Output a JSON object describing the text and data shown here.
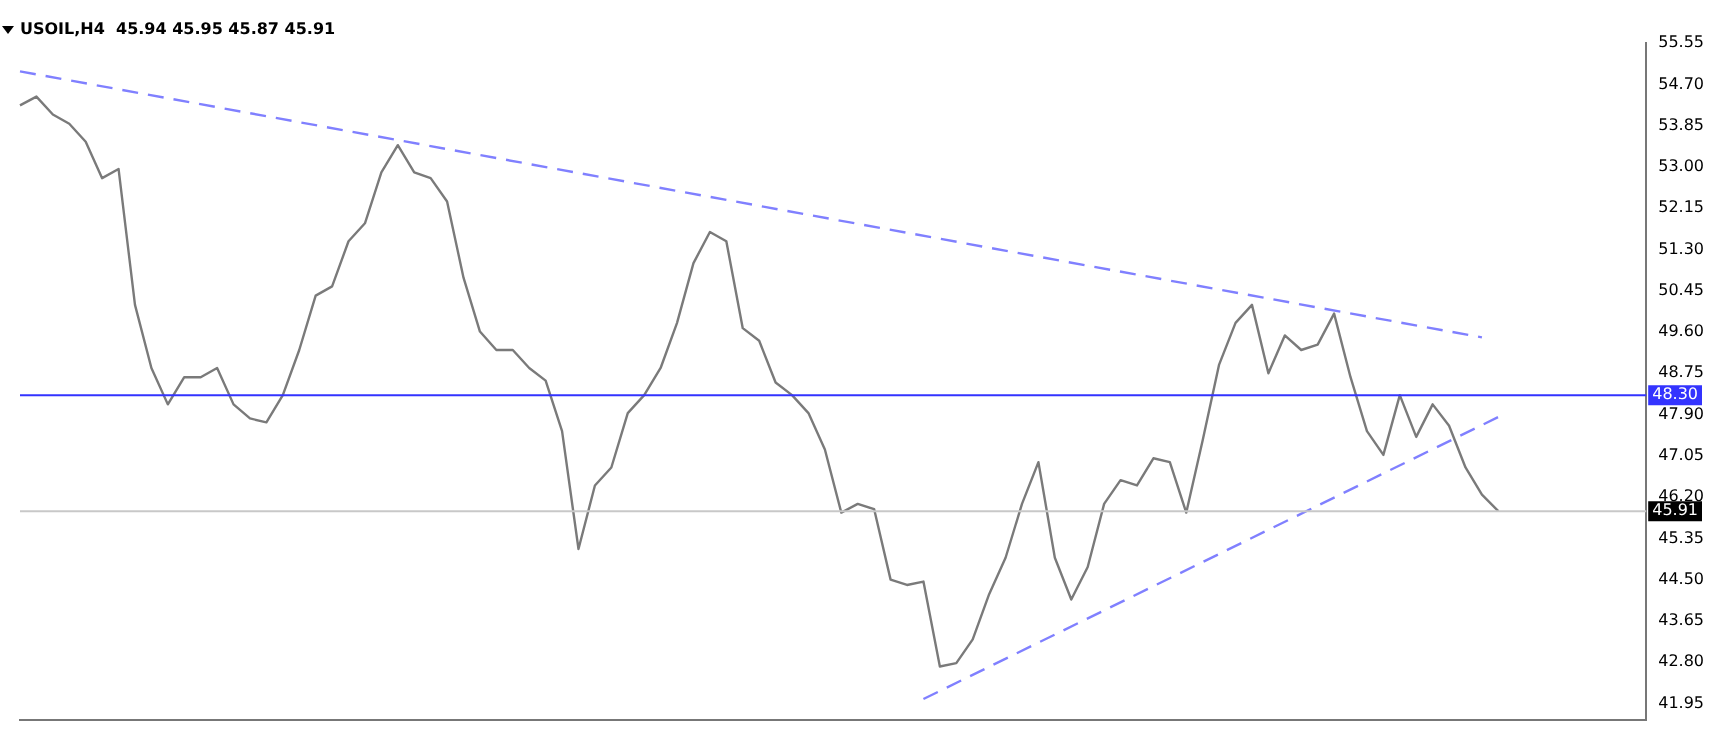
{
  "chart_data": {
    "type": "line",
    "title": "USOIL,H4  45.94 45.95 45.87 45.91",
    "categories": [
      null,
      null,
      null,
      null,
      null,
      null,
      null,
      null,
      null,
      null,
      null,
      null,
      null,
      null,
      null,
      null,
      null,
      null,
      null,
      null,
      null,
      null,
      null,
      null,
      null,
      null,
      null,
      null,
      null,
      null,
      null,
      null,
      null,
      null,
      null,
      null,
      null,
      null,
      null,
      null,
      null,
      null,
      null,
      null,
      null,
      null,
      null,
      null,
      null,
      null,
      null,
      null,
      null,
      null,
      null,
      null,
      null,
      null,
      null,
      null,
      null,
      null,
      null,
      null,
      null,
      null,
      null,
      null,
      null,
      null,
      null,
      null,
      null,
      null,
      null,
      null,
      null,
      null,
      null,
      null,
      null,
      null,
      null,
      null,
      null,
      null,
      null,
      null,
      null,
      null,
      null,
      null,
      null,
      null,
      null,
      null,
      null,
      null,
      null,
      null
    ],
    "series": [
      {
        "color": "#7a7a7a",
        "line_style": "solid",
        "values": [
          54.27,
          54.45,
          54.08,
          53.89,
          53.52,
          52.77,
          52.96,
          50.16,
          48.86,
          48.11,
          48.67,
          48.67,
          48.86,
          48.11,
          47.82,
          47.74,
          48.3,
          49.23,
          50.35,
          50.54,
          51.47,
          51.84,
          52.89,
          53.45,
          52.89,
          52.77,
          52.29,
          50.72,
          49.61,
          49.23,
          49.23,
          48.86,
          48.6,
          47.56,
          45.13,
          46.44,
          46.81,
          47.93,
          48.3,
          48.86,
          49.79,
          51.02,
          51.66,
          51.47,
          49.68,
          49.42,
          48.56,
          48.3,
          47.93,
          47.18,
          45.88,
          46.06,
          45.95,
          44.5,
          44.39,
          44.46,
          42.71,
          42.78,
          43.27,
          44.2,
          44.95,
          46.06,
          46.92,
          44.95,
          44.09,
          44.76,
          46.06,
          46.55,
          46.44,
          47.0,
          46.92,
          45.88,
          47.37,
          48.93,
          49.79,
          50.16,
          48.75,
          49.53,
          49.23,
          49.34,
          49.98,
          48.67,
          47.56,
          47.07,
          48.3,
          47.44,
          48.11,
          47.67,
          46.81,
          46.25,
          45.91,
          null,
          null,
          null,
          null,
          null,
          null,
          null,
          null,
          null
        ]
      },
      {
        "type": "line",
        "color": "#8080ff",
        "line_style": "dashed",
        "values": [
          54.97,
          null,
          null,
          null,
          null,
          null,
          null,
          null,
          null,
          null,
          null,
          null,
          null,
          null,
          null,
          null,
          null,
          null,
          null,
          null,
          null,
          null,
          null,
          null,
          null,
          null,
          null,
          null,
          null,
          null,
          null,
          null,
          null,
          null,
          null,
          null,
          null,
          null,
          null,
          null,
          null,
          null,
          null,
          null,
          null,
          null,
          null,
          null,
          null,
          null,
          null,
          null,
          null,
          null,
          null,
          null,
          null,
          null,
          null,
          null,
          null,
          null,
          null,
          null,
          null,
          null,
          null,
          null,
          null,
          null,
          null,
          null,
          null,
          null,
          null,
          null,
          null,
          null,
          null,
          null,
          null,
          null,
          null,
          null,
          null,
          null,
          null,
          null,
          null,
          49.49,
          null,
          null,
          null,
          null,
          null,
          null,
          null,
          null,
          null,
          null
        ]
      },
      {
        "type": "line",
        "color": "#8080ff",
        "line_style": "dashed",
        "values": [
          null,
          null,
          null,
          null,
          null,
          null,
          null,
          null,
          null,
          null,
          null,
          null,
          null,
          null,
          null,
          null,
          null,
          null,
          null,
          null,
          null,
          null,
          null,
          null,
          null,
          null,
          null,
          null,
          null,
          null,
          null,
          null,
          null,
          null,
          null,
          null,
          null,
          null,
          null,
          null,
          null,
          null,
          null,
          null,
          null,
          null,
          null,
          null,
          null,
          null,
          null,
          null,
          null,
          null,
          null,
          42.04,
          null,
          null,
          null,
          null,
          null,
          null,
          null,
          null,
          null,
          null,
          null,
          null,
          null,
          null,
          null,
          null,
          null,
          null,
          null,
          null,
          null,
          null,
          null,
          null,
          null,
          null,
          null,
          null,
          null,
          null,
          null,
          null,
          null,
          null,
          47.85,
          null,
          null,
          null,
          null,
          null,
          null,
          null,
          null,
          null
        ]
      }
    ],
    "ylim": [
      41.6,
      55.55
    ],
    "yticks": [
      {
        "value": 41.95,
        "label": "41.95"
      },
      {
        "value": 42.8,
        "label": "42.80"
      },
      {
        "value": 43.65,
        "label": "43.65"
      },
      {
        "value": 44.5,
        "label": "44.50"
      },
      {
        "value": 45.35,
        "label": "45.35"
      },
      {
        "value": 46.2,
        "label": "46.20"
      },
      {
        "value": 47.05,
        "label": "47.05"
      },
      {
        "value": 47.9,
        "label": "47.90"
      },
      {
        "value": 48.75,
        "label": "48.75"
      },
      {
        "value": 49.6,
        "label": "49.60"
      },
      {
        "value": 50.45,
        "label": "50.45"
      },
      {
        "value": 51.3,
        "label": "51.30"
      },
      {
        "value": 52.15,
        "label": "52.15"
      },
      {
        "value": 53.0,
        "label": "53.00"
      },
      {
        "value": 53.85,
        "label": "53.85"
      },
      {
        "value": 54.7,
        "label": "54.70"
      },
      {
        "value": 55.55,
        "label": "55.55"
      }
    ],
    "tick_labels": "y",
    "ref_lines": [
      {
        "axis": "y",
        "value": 48.3,
        "label": "48.30",
        "color": "#3333ff",
        "line_style": "solid"
      },
      {
        "axis": "y",
        "value": 45.91,
        "label": "45.91",
        "color": "#c8c8c8",
        "line_style": "solid"
      }
    ]
  }
}
